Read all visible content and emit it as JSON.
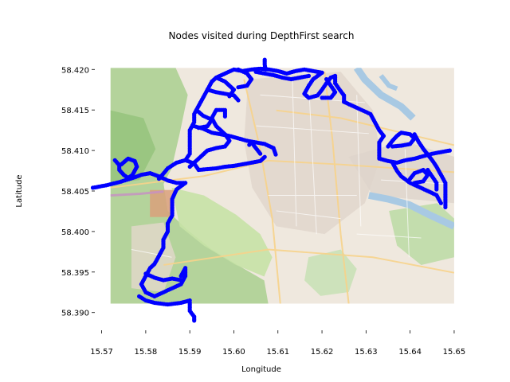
{
  "chart_data": {
    "type": "scatter",
    "title": "Nodes visited during DepthFirst search",
    "xlabel": "Longitude",
    "ylabel": "Latitude",
    "xlim": [
      15.567,
      15.652
    ],
    "ylim": [
      58.3885,
      58.4215
    ],
    "map_extent": {
      "lon": [
        15.572,
        15.65
      ],
      "lat": [
        58.3911,
        58.4202
      ]
    },
    "xticks": [
      15.57,
      15.58,
      15.59,
      15.6,
      15.61,
      15.62,
      15.63,
      15.64,
      15.65
    ],
    "yticks": [
      58.39,
      58.395,
      58.4,
      58.405,
      58.41,
      58.415,
      58.42
    ],
    "xtick_labels": [
      "15.57",
      "15.58",
      "15.59",
      "15.60",
      "15.61",
      "15.62",
      "15.63",
      "15.64",
      "15.65"
    ],
    "ytick_labels": [
      "58.390",
      "58.395",
      "58.400",
      "58.405",
      "58.410",
      "58.415",
      "58.420"
    ],
    "grid": false,
    "background": "OpenStreetMap street map tile",
    "marker_color": "#0000ff",
    "paths": [
      [
        [
          15.568,
          58.4054
        ],
        [
          15.571,
          58.4057
        ],
        [
          15.574,
          58.4061
        ],
        [
          15.577,
          58.4066
        ],
        [
          15.579,
          58.407
        ],
        [
          15.581,
          58.4072
        ],
        [
          15.583,
          58.4068
        ],
        [
          15.585,
          58.4063
        ],
        [
          15.587,
          58.406
        ],
        [
          15.589,
          58.406
        ]
      ],
      [
        [
          15.573,
          58.4088
        ],
        [
          15.574,
          58.4082
        ],
        [
          15.574,
          58.4076
        ],
        [
          15.575,
          58.407
        ],
        [
          15.576,
          58.4066
        ],
        [
          15.577,
          58.407
        ],
        [
          15.578,
          58.408
        ],
        [
          15.5775,
          58.4087
        ],
        [
          15.576,
          58.409
        ],
        [
          15.5745,
          58.4083
        ]
      ],
      [
        [
          15.589,
          58.406
        ],
        [
          15.587,
          58.4052
        ],
        [
          15.586,
          58.404
        ],
        [
          15.586,
          58.403
        ],
        [
          15.586,
          58.402
        ],
        [
          15.585,
          58.401
        ],
        [
          15.585,
          58.4
        ],
        [
          15.584,
          58.399
        ],
        [
          15.584,
          58.398
        ],
        [
          15.583,
          58.397
        ],
        [
          15.582,
          58.396
        ],
        [
          15.581,
          58.3955
        ],
        [
          15.58,
          58.3945
        ],
        [
          15.579,
          58.3935
        ],
        [
          15.58,
          58.3925
        ],
        [
          15.582,
          58.392
        ],
        [
          15.584,
          58.3925
        ],
        [
          15.586,
          58.393
        ],
        [
          15.588,
          58.3935
        ],
        [
          15.589,
          58.3945
        ],
        [
          15.589,
          58.3955
        ],
        [
          15.588,
          58.3945
        ]
      ],
      [
        [
          15.58,
          58.3948
        ],
        [
          15.582,
          58.3943
        ],
        [
          15.584,
          58.394
        ],
        [
          15.586,
          58.3942
        ],
        [
          15.588,
          58.394
        ]
      ],
      [
        [
          15.5785,
          58.392
        ],
        [
          15.58,
          58.3915
        ],
        [
          15.582,
          58.3912
        ],
        [
          15.585,
          58.391
        ],
        [
          15.588,
          58.3912
        ],
        [
          15.59,
          58.3915
        ]
      ],
      [
        [
          15.59,
          58.3912
        ],
        [
          15.59,
          58.3902
        ],
        [
          15.591,
          58.3895
        ],
        [
          15.591,
          58.389
        ]
      ],
      [
        [
          15.583,
          58.4065
        ],
        [
          15.585,
          58.4078
        ],
        [
          15.587,
          58.4085
        ],
        [
          15.589,
          58.4088
        ],
        [
          15.591,
          58.4084
        ],
        [
          15.592,
          58.4076
        ],
        [
          15.594,
          58.4077
        ],
        [
          15.596,
          58.4078
        ],
        [
          15.598,
          58.408
        ],
        [
          15.6,
          58.4081
        ],
        [
          15.602,
          58.4083
        ],
        [
          15.604,
          58.4085
        ],
        [
          15.606,
          58.4087
        ],
        [
          15.607,
          58.4092
        ]
      ],
      [
        [
          15.589,
          58.4088
        ],
        [
          15.59,
          58.4096
        ],
        [
          15.59,
          58.4105
        ],
        [
          15.59,
          58.4115
        ],
        [
          15.59,
          58.4125
        ],
        [
          15.591,
          58.4135
        ],
        [
          15.591,
          58.4145
        ],
        [
          15.592,
          58.4155
        ],
        [
          15.593,
          58.4165
        ],
        [
          15.594,
          58.4175
        ],
        [
          15.595,
          58.4185
        ],
        [
          15.596,
          58.419
        ],
        [
          15.598,
          58.4195
        ],
        [
          15.6,
          58.42
        ],
        [
          15.602,
          58.4198
        ],
        [
          15.604,
          58.42
        ],
        [
          15.606,
          58.4201
        ],
        [
          15.608,
          58.42
        ],
        [
          15.61,
          58.4198
        ],
        [
          15.612,
          58.4195
        ],
        [
          15.614,
          58.4198
        ],
        [
          15.616,
          58.42
        ],
        [
          15.618,
          58.4198
        ],
        [
          15.62,
          58.4196
        ]
      ],
      [
        [
          15.591,
          58.413
        ],
        [
          15.593,
          58.4127
        ],
        [
          15.595,
          58.4122
        ],
        [
          15.597,
          58.412
        ],
        [
          15.599,
          58.4118
        ],
        [
          15.601,
          58.4115
        ],
        [
          15.603,
          58.4112
        ],
        [
          15.605,
          58.411
        ],
        [
          15.607,
          58.4108
        ],
        [
          15.609,
          58.4103
        ],
        [
          15.6095,
          58.4095
        ]
      ],
      [
        [
          15.59,
          58.408
        ],
        [
          15.592,
          58.409
        ],
        [
          15.594,
          58.41
        ],
        [
          15.596,
          58.4103
        ],
        [
          15.598,
          58.4105
        ],
        [
          15.599,
          58.4112
        ],
        [
          15.598,
          58.412
        ],
        [
          15.596,
          58.413
        ],
        [
          15.595,
          58.414
        ],
        [
          15.596,
          58.415
        ],
        [
          15.598,
          58.415
        ],
        [
          15.598,
          58.4142
        ]
      ],
      [
        [
          15.594,
          58.4175
        ],
        [
          15.596,
          58.4172
        ],
        [
          15.598,
          58.417
        ],
        [
          15.6,
          58.4168
        ],
        [
          15.601,
          58.4162
        ]
      ],
      [
        [
          15.5915,
          58.415
        ],
        [
          15.593,
          58.4143
        ],
        [
          15.595,
          58.4138
        ],
        [
          15.594,
          58.413
        ],
        [
          15.592,
          58.4128
        ]
      ],
      [
        [
          15.596,
          58.419
        ],
        [
          15.598,
          58.4185
        ],
        [
          15.599,
          58.418
        ],
        [
          15.6,
          58.4175
        ],
        [
          15.599,
          58.4167
        ]
      ],
      [
        [
          15.601,
          58.42
        ],
        [
          15.603,
          58.4195
        ],
        [
          15.604,
          58.4188
        ],
        [
          15.603,
          58.418
        ],
        [
          15.601,
          58.4178
        ]
      ],
      [
        [
          15.607,
          58.4212
        ],
        [
          15.607,
          58.4206
        ],
        [
          15.6072,
          58.42
        ]
      ],
      [
        [
          15.605,
          58.4197
        ],
        [
          15.607,
          58.4195
        ],
        [
          15.609,
          58.4193
        ],
        [
          15.611,
          58.419
        ],
        [
          15.613,
          58.4188
        ],
        [
          15.615,
          58.419
        ],
        [
          15.617,
          58.4192
        ]
      ],
      [
        [
          15.62,
          58.4196
        ],
        [
          15.618,
          58.4188
        ],
        [
          15.617,
          58.418
        ],
        [
          15.616,
          58.417
        ],
        [
          15.617,
          58.4165
        ],
        [
          15.619,
          58.4168
        ],
        [
          15.62,
          58.4175
        ],
        [
          15.621,
          58.4183
        ],
        [
          15.622,
          58.419
        ],
        [
          15.623,
          58.4192
        ],
        [
          15.623,
          58.4183
        ],
        [
          15.624,
          58.4175
        ],
        [
          15.625,
          58.4168
        ],
        [
          15.625,
          58.416
        ]
      ],
      [
        [
          15.625,
          58.416
        ],
        [
          15.627,
          58.4155
        ],
        [
          15.629,
          58.415
        ],
        [
          15.631,
          58.4145
        ],
        [
          15.632,
          58.4135
        ],
        [
          15.633,
          58.4125
        ],
        [
          15.634,
          58.4118
        ],
        [
          15.633,
          58.411
        ],
        [
          15.633,
          58.41
        ],
        [
          15.633,
          58.409
        ],
        [
          15.635,
          58.4087
        ],
        [
          15.637,
          58.4085
        ],
        [
          15.639,
          58.4088
        ],
        [
          15.641,
          58.409
        ],
        [
          15.643,
          58.4093
        ],
        [
          15.645,
          58.4096
        ],
        [
          15.647,
          58.4098
        ],
        [
          15.649,
          58.41
        ]
      ],
      [
        [
          15.635,
          58.4105
        ],
        [
          15.636,
          58.4112
        ],
        [
          15.637,
          58.4118
        ],
        [
          15.638,
          58.4122
        ],
        [
          15.64,
          58.412
        ],
        [
          15.641,
          58.4115
        ],
        [
          15.64,
          58.4108
        ],
        [
          15.638,
          58.4106
        ],
        [
          15.636,
          58.4105
        ]
      ],
      [
        [
          15.641,
          58.412
        ],
        [
          15.642,
          58.411
        ],
        [
          15.643,
          58.4102
        ],
        [
          15.644,
          58.4095
        ],
        [
          15.645,
          58.4088
        ],
        [
          15.646,
          58.408
        ],
        [
          15.647,
          58.407
        ],
        [
          15.648,
          58.406
        ],
        [
          15.648,
          58.405
        ],
        [
          15.648,
          58.404
        ],
        [
          15.648,
          58.403
        ]
      ],
      [
        [
          15.636,
          58.4085
        ],
        [
          15.637,
          58.4075
        ],
        [
          15.638,
          58.4068
        ],
        [
          15.64,
          58.406
        ],
        [
          15.642,
          58.4055
        ],
        [
          15.644,
          58.405
        ],
        [
          15.646,
          58.4045
        ],
        [
          15.647,
          58.4035
        ]
      ],
      [
        [
          15.64,
          58.4065
        ],
        [
          15.641,
          58.4072
        ],
        [
          15.643,
          58.4076
        ],
        [
          15.644,
          58.407
        ],
        [
          15.643,
          58.4062
        ],
        [
          15.641,
          58.406
        ]
      ],
      [
        [
          15.644,
          58.4076
        ],
        [
          15.645,
          58.4068
        ],
        [
          15.646,
          58.406
        ],
        [
          15.646,
          58.4052
        ]
      ],
      [
        [
          15.621,
          58.4188
        ],
        [
          15.622,
          58.418
        ],
        [
          15.623,
          58.4172
        ],
        [
          15.622,
          58.4165
        ],
        [
          15.62,
          58.4165
        ]
      ],
      [
        [
          15.6035,
          58.4107
        ],
        [
          15.604,
          58.411
        ],
        [
          15.605,
          58.4103
        ],
        [
          15.606,
          58.4096
        ]
      ]
    ]
  }
}
